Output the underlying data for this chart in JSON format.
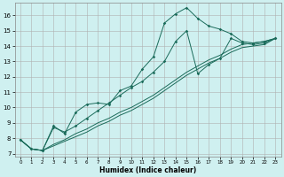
{
  "xlabel": "Humidex (Indice chaleur)",
  "bg_color": "#cff0f0",
  "grid_color": "#b0b0b0",
  "line_color": "#1a6b5a",
  "xlim": [
    -0.5,
    23.5
  ],
  "ylim": [
    6.8,
    16.8
  ],
  "yticks": [
    7,
    8,
    9,
    10,
    11,
    12,
    13,
    14,
    15,
    16
  ],
  "xticks": [
    0,
    1,
    2,
    3,
    4,
    5,
    6,
    7,
    8,
    9,
    10,
    11,
    12,
    13,
    14,
    15,
    16,
    17,
    18,
    19,
    20,
    21,
    22,
    23
  ],
  "series1_x": [
    0,
    1,
    2,
    3,
    4,
    5,
    6,
    7,
    8,
    9,
    10,
    11,
    12,
    13,
    14,
    15,
    16,
    17,
    18,
    19,
    20,
    21,
    22,
    23
  ],
  "series1_y": [
    7.9,
    7.3,
    7.2,
    8.8,
    8.3,
    9.7,
    10.2,
    10.3,
    10.2,
    11.1,
    11.4,
    12.5,
    13.3,
    15.5,
    16.1,
    16.5,
    15.8,
    15.3,
    15.1,
    14.8,
    14.3,
    14.2,
    14.3,
    14.5
  ],
  "series2_x": [
    0,
    1,
    2,
    3,
    4,
    5,
    6,
    7,
    8,
    9,
    10,
    11,
    12,
    13,
    14,
    15,
    16,
    17,
    18,
    19,
    20,
    21,
    22,
    23
  ],
  "series2_y": [
    7.9,
    7.3,
    7.2,
    8.7,
    8.4,
    8.8,
    9.3,
    9.8,
    10.3,
    10.8,
    11.3,
    11.7,
    12.3,
    13.0,
    14.3,
    15.0,
    12.2,
    12.8,
    13.2,
    14.5,
    14.2,
    14.1,
    14.2,
    14.5
  ],
  "straight1_x": [
    0,
    1,
    2,
    3,
    4,
    5,
    6,
    7,
    8,
    9,
    10,
    11,
    12,
    13,
    14,
    15,
    16,
    17,
    18,
    19,
    20,
    21,
    22,
    23
  ],
  "straight1_y": [
    7.9,
    7.3,
    7.2,
    7.6,
    7.9,
    8.3,
    8.6,
    9.0,
    9.3,
    9.7,
    10.0,
    10.4,
    10.8,
    11.3,
    11.8,
    12.3,
    12.7,
    13.1,
    13.4,
    13.8,
    14.1,
    14.2,
    14.3,
    14.5
  ],
  "straight2_x": [
    0,
    1,
    2,
    3,
    4,
    5,
    6,
    7,
    8,
    9,
    10,
    11,
    12,
    13,
    14,
    15,
    16,
    17,
    18,
    19,
    20,
    21,
    22,
    23
  ],
  "straight2_y": [
    7.9,
    7.3,
    7.2,
    7.5,
    7.8,
    8.1,
    8.4,
    8.8,
    9.1,
    9.5,
    9.8,
    10.2,
    10.6,
    11.1,
    11.6,
    12.1,
    12.5,
    12.9,
    13.2,
    13.6,
    13.9,
    14.0,
    14.1,
    14.5
  ]
}
